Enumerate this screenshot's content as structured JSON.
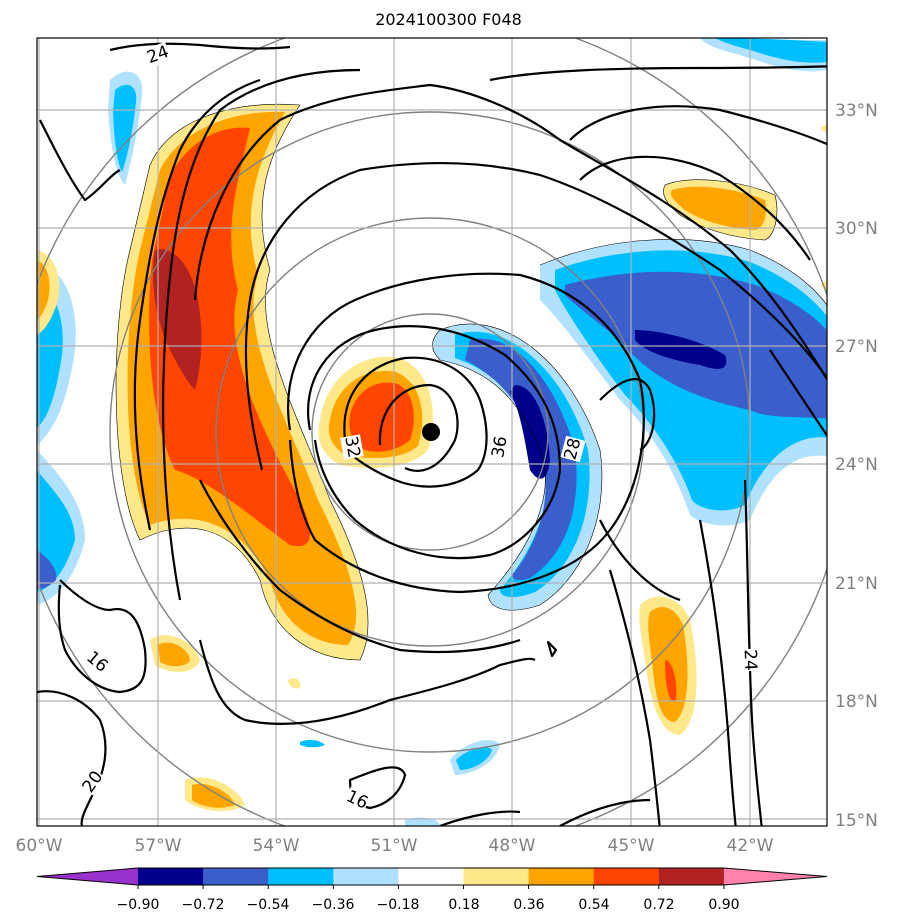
{
  "title": "2024100300 F048",
  "map": {
    "lat_labels": [
      "33°N",
      "30°N",
      "27°N",
      "24°N",
      "21°N",
      "18°N",
      "15°N"
    ],
    "lon_labels": [
      "60°W",
      "57°W",
      "54°W",
      "51°W",
      "48°W",
      "45°W",
      "42°W"
    ],
    "contour_labels": [
      "24",
      "32",
      "36",
      "28",
      "24",
      "16",
      "20",
      "16"
    ],
    "center_marker": "storm-center",
    "grid": true,
    "range_rings": true
  },
  "colorbar": {
    "ticks": [
      "−0.90",
      "−0.72",
      "−0.54",
      "−0.36",
      "−0.18",
      "0.18",
      "0.36",
      "0.54",
      "0.72",
      "0.90"
    ],
    "colors": [
      "#9932cc",
      "#00008b",
      "#3a5fcd",
      "#00bfff",
      "#b0e2ff",
      "#ffffff",
      "#ffe88a",
      "#ffa500",
      "#ff4500",
      "#b22222",
      "#ff82ab"
    ]
  }
}
